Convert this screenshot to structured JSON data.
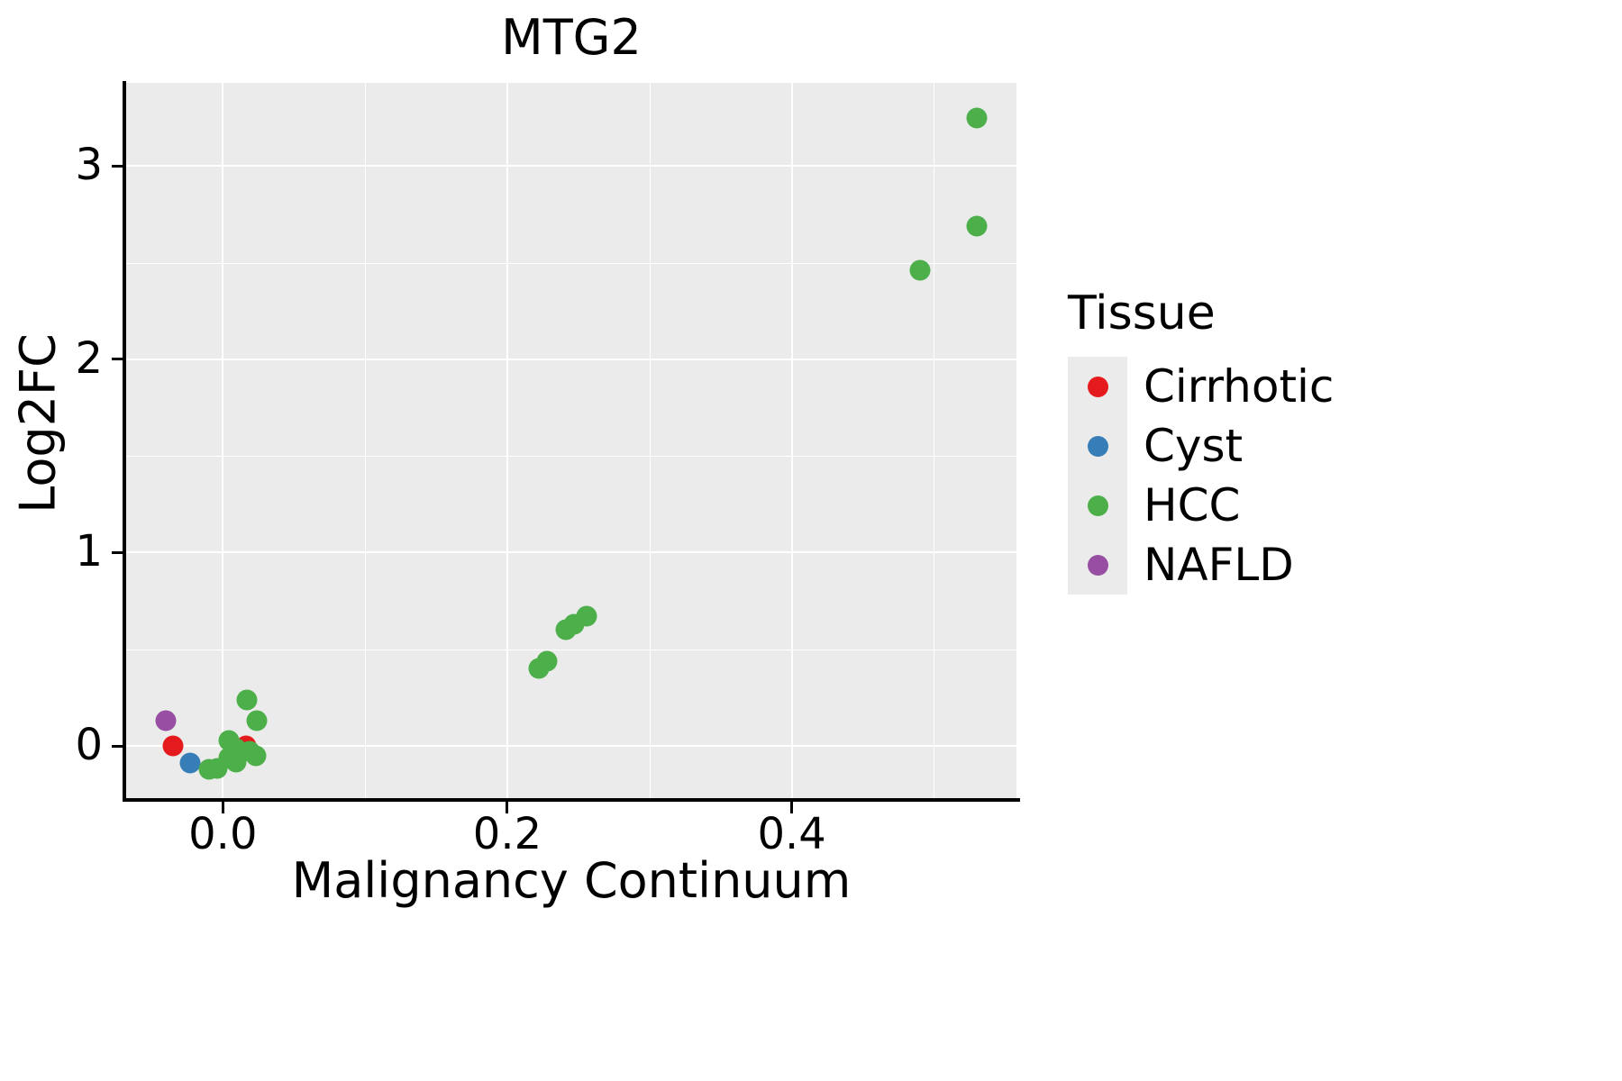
{
  "chart_data": {
    "type": "scatter",
    "title": "MTG2",
    "xlabel": "Malignancy Continuum",
    "ylabel": "Log2FC",
    "xlim": [
      -0.068,
      0.558
    ],
    "ylim": [
      -0.27,
      3.43
    ],
    "x_major_ticks": [
      0.0,
      0.2,
      0.4
    ],
    "x_tick_labels": [
      "0.0",
      "0.2",
      "0.4"
    ],
    "x_minor_ticks": [
      0.1,
      0.3,
      0.5
    ],
    "y_major_ticks": [
      0,
      1,
      2,
      3
    ],
    "y_tick_labels": [
      "0",
      "1",
      "2",
      "3"
    ],
    "y_minor_ticks": [
      0.5,
      1.5,
      2.5
    ],
    "grid": true,
    "panel_background": "#ebebeb",
    "gridline_color": "#ffffff",
    "legend": {
      "title": "Tissue",
      "position": "right",
      "entries": [
        "Cirrhotic",
        "Cyst",
        "HCC",
        "NAFLD"
      ]
    },
    "series": [
      {
        "name": "Cirrhotic",
        "color": "#e41a1c",
        "points": [
          [
            -0.035,
            0.0
          ],
          [
            0.016,
            0.0
          ]
        ]
      },
      {
        "name": "Cyst",
        "color": "#377eb8",
        "points": [
          [
            -0.023,
            -0.09
          ]
        ]
      },
      {
        "name": "HCC",
        "color": "#4daf4a",
        "points": [
          [
            0.53,
            3.25
          ],
          [
            0.53,
            2.69
          ],
          [
            0.49,
            2.46
          ],
          [
            0.256,
            0.67
          ],
          [
            0.247,
            0.63
          ],
          [
            0.241,
            0.6
          ],
          [
            0.228,
            0.44
          ],
          [
            0.222,
            0.4
          ],
          [
            0.017,
            0.24
          ],
          [
            0.024,
            0.13
          ],
          [
            0.004,
            0.03
          ],
          [
            0.0095,
            -0.015
          ],
          [
            0.019,
            -0.03
          ],
          [
            0.023,
            -0.05
          ],
          [
            0.004,
            -0.06
          ],
          [
            0.0095,
            -0.085
          ],
          [
            -0.0095,
            -0.12
          ],
          [
            -0.004,
            -0.115
          ]
        ]
      },
      {
        "name": "NAFLD",
        "color": "#984ea3",
        "points": [
          [
            -0.04,
            0.13
          ]
        ]
      }
    ]
  }
}
